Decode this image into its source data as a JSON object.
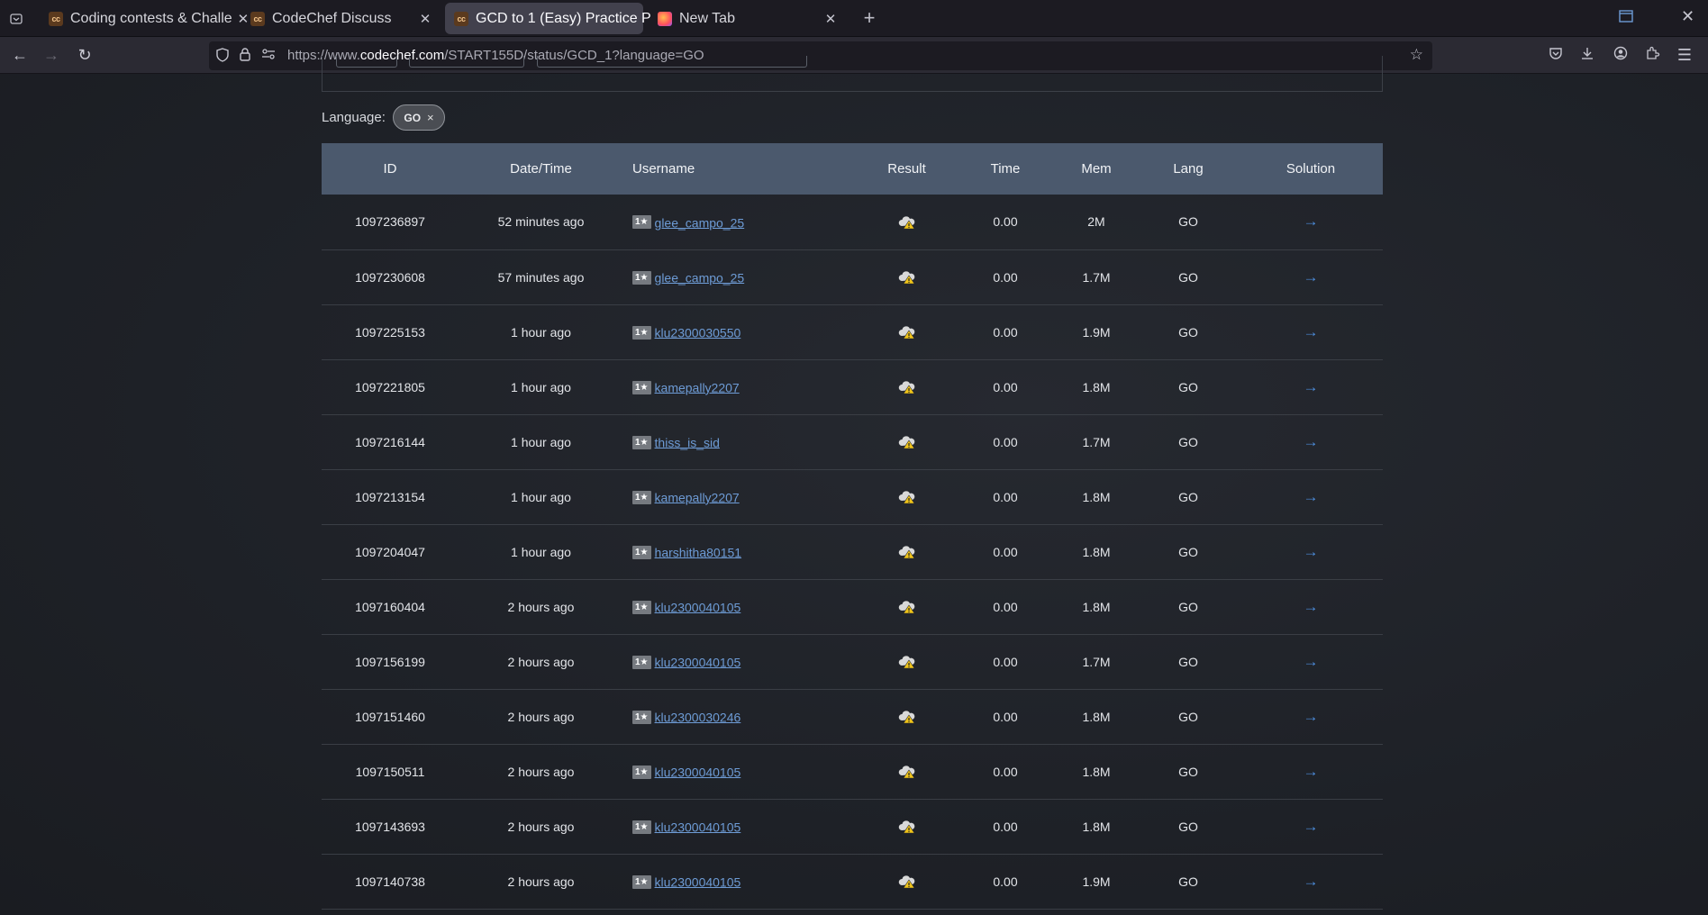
{
  "browser": {
    "tabs": [
      {
        "title": "Coding contests & Challe",
        "favicon": "CC",
        "active": false
      },
      {
        "title": "CodeChef Discuss",
        "favicon": "CC",
        "active": false
      },
      {
        "title": "GCD to 1 (Easy) Practice P",
        "favicon": "CC",
        "active": true
      },
      {
        "title": "New Tab",
        "favicon": "firefox",
        "active": false
      }
    ],
    "url_prefix": "https://www.",
    "url_host": "codechef.com",
    "url_path": "/START155D/status/GCD_1?language=GO"
  },
  "filter": {
    "language_label": "Language:",
    "language_chip": "GO",
    "chip_remove": "×"
  },
  "table": {
    "columns": [
      "ID",
      "Date/Time",
      "Username",
      "Result",
      "Time",
      "Mem",
      "Lang",
      "Solution"
    ],
    "rows": [
      {
        "id": "1097236897",
        "datetime": "52 minutes ago",
        "rating": "1★",
        "username": "glee_campo_25",
        "time": "0.00",
        "mem": "2M",
        "lang": "GO"
      },
      {
        "id": "1097230608",
        "datetime": "57 minutes ago",
        "rating": "1★",
        "username": "glee_campo_25",
        "time": "0.00",
        "mem": "1.7M",
        "lang": "GO"
      },
      {
        "id": "1097225153",
        "datetime": "1 hour ago",
        "rating": "1★",
        "username": "klu2300030550",
        "time": "0.00",
        "mem": "1.9M",
        "lang": "GO"
      },
      {
        "id": "1097221805",
        "datetime": "1 hour ago",
        "rating": "1★",
        "username": "kamepally2207",
        "time": "0.00",
        "mem": "1.8M",
        "lang": "GO"
      },
      {
        "id": "1097216144",
        "datetime": "1 hour ago",
        "rating": "1★",
        "username": "thiss_is_sid",
        "time": "0.00",
        "mem": "1.7M",
        "lang": "GO"
      },
      {
        "id": "1097213154",
        "datetime": "1 hour ago",
        "rating": "1★",
        "username": "kamepally2207",
        "time": "0.00",
        "mem": "1.8M",
        "lang": "GO"
      },
      {
        "id": "1097204047",
        "datetime": "1 hour ago",
        "rating": "1★",
        "username": "harshitha80151",
        "time": "0.00",
        "mem": "1.8M",
        "lang": "GO"
      },
      {
        "id": "1097160404",
        "datetime": "2 hours ago",
        "rating": "1★",
        "username": "klu2300040105",
        "time": "0.00",
        "mem": "1.8M",
        "lang": "GO"
      },
      {
        "id": "1097156199",
        "datetime": "2 hours ago",
        "rating": "1★",
        "username": "klu2300040105",
        "time": "0.00",
        "mem": "1.7M",
        "lang": "GO"
      },
      {
        "id": "1097151460",
        "datetime": "2 hours ago",
        "rating": "1★",
        "username": "klu2300030246",
        "time": "0.00",
        "mem": "1.8M",
        "lang": "GO"
      },
      {
        "id": "1097150511",
        "datetime": "2 hours ago",
        "rating": "1★",
        "username": "klu2300040105",
        "time": "0.00",
        "mem": "1.8M",
        "lang": "GO"
      },
      {
        "id": "1097143693",
        "datetime": "2 hours ago",
        "rating": "1★",
        "username": "klu2300040105",
        "time": "0.00",
        "mem": "1.8M",
        "lang": "GO"
      },
      {
        "id": "1097140738",
        "datetime": "2 hours ago",
        "rating": "1★",
        "username": "klu2300040105",
        "time": "0.00",
        "mem": "1.9M",
        "lang": "GO"
      }
    ],
    "result_icon": "warning-cloud-icon",
    "solution_icon": "arrow-right-icon"
  },
  "colors": {
    "header_bg": "#4b596d",
    "link": "#6d9bd5",
    "arrow": "#4d8fe0",
    "warning": "#f0c419"
  }
}
